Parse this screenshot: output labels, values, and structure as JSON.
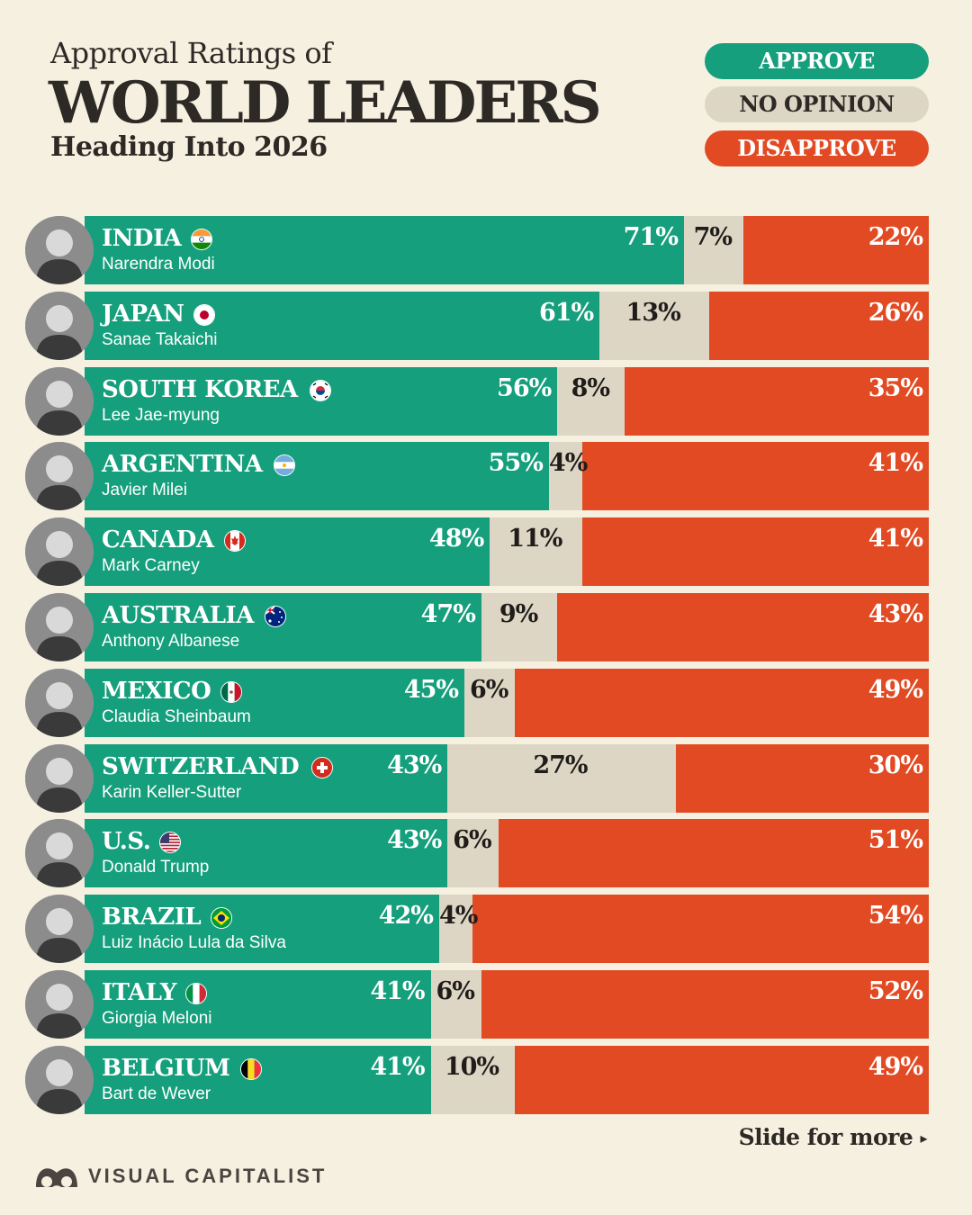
{
  "header": {
    "subtitle": "Approval Ratings of",
    "title": "WORLD LEADERS",
    "tagline": "Heading Into 2026"
  },
  "legend": [
    {
      "label": "APPROVE",
      "color": "#159f7c",
      "text_color": "#ffffff"
    },
    {
      "label": "NO OPINION",
      "color": "#ddd6c5",
      "text_color": "#2d2a26"
    },
    {
      "label": "DISAPPROVE",
      "color": "#e14a23",
      "text_color": "#ffffff"
    }
  ],
  "chart_data": {
    "type": "bar",
    "orientation": "horizontal",
    "stacked": true,
    "xlim": [
      0,
      100
    ],
    "series": [
      {
        "name": "APPROVE",
        "color": "#159f7c",
        "values": [
          71,
          61,
          56,
          55,
          48,
          47,
          45,
          43,
          43,
          42,
          41,
          41
        ]
      },
      {
        "name": "NO OPINION",
        "color": "#ddd6c5",
        "values": [
          7,
          13,
          8,
          4,
          11,
          9,
          6,
          27,
          6,
          4,
          6,
          10
        ]
      },
      {
        "name": "DISAPPROVE",
        "color": "#e14a23",
        "values": [
          22,
          26,
          35,
          41,
          41,
          43,
          49,
          30,
          51,
          54,
          52,
          49
        ]
      }
    ],
    "rows": [
      {
        "country": "INDIA",
        "leader": "Narendra Modi",
        "flag": "india-flag-icon"
      },
      {
        "country": "JAPAN",
        "leader": "Sanae Takaichi",
        "flag": "japan-flag-icon"
      },
      {
        "country": "SOUTH KOREA",
        "leader": "Lee Jae-myung",
        "flag": "south-korea-flag-icon"
      },
      {
        "country": "ARGENTINA",
        "leader": "Javier Milei",
        "flag": "argentina-flag-icon"
      },
      {
        "country": "CANADA",
        "leader": "Mark Carney",
        "flag": "canada-flag-icon"
      },
      {
        "country": "AUSTRALIA",
        "leader": "Anthony Albanese",
        "flag": "australia-flag-icon"
      },
      {
        "country": "MEXICO",
        "leader": "Claudia Sheinbaum",
        "flag": "mexico-flag-icon"
      },
      {
        "country": "SWITZERLAND",
        "leader": "Karin Keller-Sutter",
        "flag": "switzerland-flag-icon"
      },
      {
        "country": "U.S.",
        "leader": "Donald Trump",
        "flag": "us-flag-icon"
      },
      {
        "country": "BRAZIL",
        "leader": "Luiz Inácio Lula da Silva",
        "flag": "brazil-flag-icon"
      },
      {
        "country": "ITALY",
        "leader": "Giorgia Meloni",
        "flag": "italy-flag-icon"
      },
      {
        "country": "BELGIUM",
        "leader": "Bart de Wever",
        "flag": "belgium-flag-icon"
      }
    ]
  },
  "footer": {
    "more_label": "Slide for more",
    "more_icon": "caret-right-icon",
    "brand": "VISUAL CAPITALIST",
    "brand_icon": "visual-capitalist-logo-icon"
  }
}
